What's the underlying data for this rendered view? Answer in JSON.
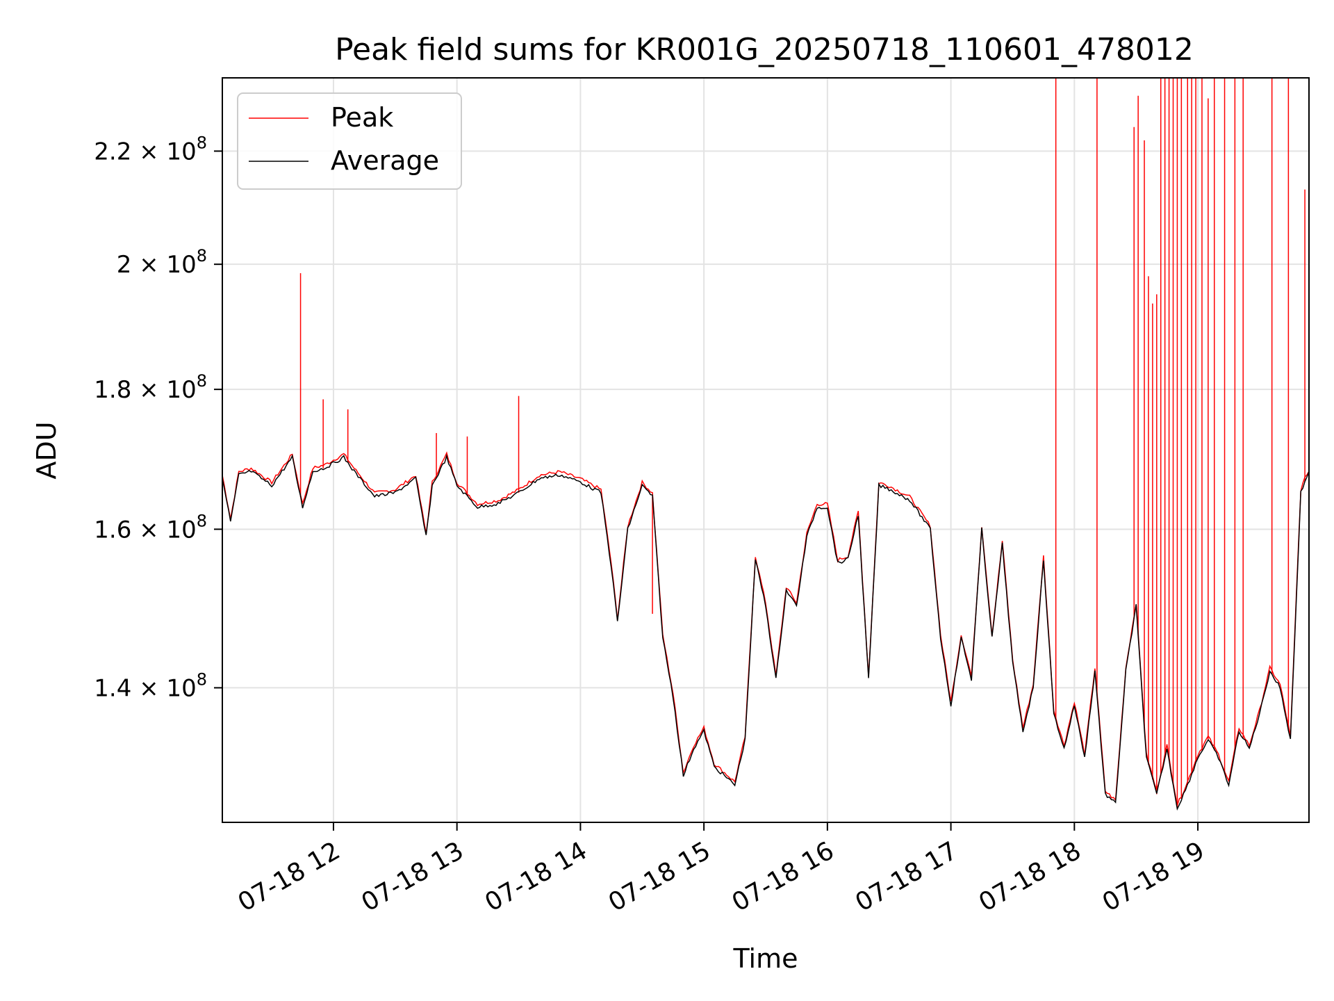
{
  "chart_data": {
    "type": "line",
    "title": "Peak field sums for KR001G_20250718_110601_478012",
    "xlabel": "Time",
    "ylabel": "ADU",
    "y_scale": "log",
    "grid": true,
    "legend_position": "top-left",
    "xlim": [
      "2025-07-18T11:06",
      "2025-07-18T19:54"
    ],
    "ylim": [
      125000000,
      234000000
    ],
    "x_ticks": [
      "2025-07-18T12:00",
      "2025-07-18T13:00",
      "2025-07-18T14:00",
      "2025-07-18T15:00",
      "2025-07-18T16:00",
      "2025-07-18T17:00",
      "2025-07-18T18:00",
      "2025-07-18T19:00"
    ],
    "x_tick_labels": [
      "07-18 12",
      "07-18 13",
      "07-18 14",
      "07-18 15",
      "07-18 16",
      "07-18 17",
      "07-18 18",
      "07-18 19"
    ],
    "y_ticks": [
      140000000,
      160000000,
      180000000,
      200000000,
      220000000
    ],
    "y_tick_labels": [
      {
        "mantissa": "1.4",
        "exponent": "8"
      },
      {
        "mantissa": "1.6",
        "exponent": "8"
      },
      {
        "mantissa": "1.8",
        "exponent": "8"
      },
      {
        "mantissa": "2",
        "exponent": "8"
      },
      {
        "mantissa": "2.2",
        "exponent": "8"
      }
    ],
    "series": [
      {
        "name": "Peak",
        "color": "#ff0000"
      },
      {
        "name": "Average",
        "color": "#000000"
      }
    ],
    "average_series": {
      "x": [
        "2025-07-18T11:06",
        "2025-07-18T11:10",
        "2025-07-18T11:14",
        "2025-07-18T11:20",
        "2025-07-18T11:30",
        "2025-07-18T11:40",
        "2025-07-18T11:45",
        "2025-07-18T11:50",
        "2025-07-18T11:56",
        "2025-07-18T12:05",
        "2025-07-18T12:10",
        "2025-07-18T12:20",
        "2025-07-18T12:30",
        "2025-07-18T12:40",
        "2025-07-18T12:45",
        "2025-07-18T12:48",
        "2025-07-18T12:55",
        "2025-07-18T13:00",
        "2025-07-18T13:10",
        "2025-07-18T13:20",
        "2025-07-18T13:30",
        "2025-07-18T13:40",
        "2025-07-18T13:50",
        "2025-07-18T14:00",
        "2025-07-18T14:10",
        "2025-07-18T14:15",
        "2025-07-18T14:18",
        "2025-07-18T14:23",
        "2025-07-18T14:30",
        "2025-07-18T14:35",
        "2025-07-18T14:40",
        "2025-07-18T14:45",
        "2025-07-18T14:50",
        "2025-07-18T14:55",
        "2025-07-18T15:00",
        "2025-07-18T15:05",
        "2025-07-18T15:10",
        "2025-07-18T15:15",
        "2025-07-18T15:20",
        "2025-07-18T15:25",
        "2025-07-18T15:30",
        "2025-07-18T15:35",
        "2025-07-18T15:40",
        "2025-07-18T15:45",
        "2025-07-18T15:50",
        "2025-07-18T15:55",
        "2025-07-18T16:00",
        "2025-07-18T16:05",
        "2025-07-18T16:10",
        "2025-07-18T16:15",
        "2025-07-18T16:20",
        "2025-07-18T16:25",
        "2025-07-18T16:30",
        "2025-07-18T16:40",
        "2025-07-18T16:50",
        "2025-07-18T16:55",
        "2025-07-18T17:00",
        "2025-07-18T17:05",
        "2025-07-18T17:10",
        "2025-07-18T17:15",
        "2025-07-18T17:20",
        "2025-07-18T17:25",
        "2025-07-18T17:30",
        "2025-07-18T17:35",
        "2025-07-18T17:40",
        "2025-07-18T17:45",
        "2025-07-18T17:50",
        "2025-07-18T17:55",
        "2025-07-18T18:00",
        "2025-07-18T18:05",
        "2025-07-18T18:10",
        "2025-07-18T18:15",
        "2025-07-18T18:20",
        "2025-07-18T18:25",
        "2025-07-18T18:30",
        "2025-07-18T18:35",
        "2025-07-18T18:40",
        "2025-07-18T18:45",
        "2025-07-18T18:50",
        "2025-07-18T18:55",
        "2025-07-18T19:00",
        "2025-07-18T19:05",
        "2025-07-18T19:10",
        "2025-07-18T19:15",
        "2025-07-18T19:20",
        "2025-07-18T19:25",
        "2025-07-18T19:30",
        "2025-07-18T19:35",
        "2025-07-18T19:40",
        "2025-07-18T19:45",
        "2025-07-18T19:50",
        "2025-07-18T19:54"
      ],
      "y": [
        167000000,
        161000000,
        167500000,
        168000000,
        166000000,
        170000000,
        163000000,
        168000000,
        168500000,
        170000000,
        168000000,
        164500000,
        165000000,
        167000000,
        159000000,
        166000000,
        170000000,
        166000000,
        163000000,
        163500000,
        165000000,
        167000000,
        167500000,
        166500000,
        165000000,
        155000000,
        148000000,
        160000000,
        166000000,
        164500000,
        146000000,
        139000000,
        130000000,
        133000000,
        135000000,
        131000000,
        130000000,
        129000000,
        134000000,
        156000000,
        150000000,
        141000000,
        152000000,
        150000000,
        159000000,
        163000000,
        163000000,
        155500000,
        156000000,
        162000000,
        141000000,
        166000000,
        165500000,
        164000000,
        160000000,
        146000000,
        138000000,
        146000000,
        141000000,
        160000000,
        146000000,
        158000000,
        143000000,
        135000000,
        140000000,
        156000000,
        137000000,
        133000000,
        138000000,
        132000000,
        142000000,
        128000000,
        127000000,
        142000000,
        150000000,
        132000000,
        128000000,
        133000000,
        126500000,
        129000000,
        132000000,
        134000000,
        132000000,
        129000000,
        135000000,
        133000000,
        137000000,
        142000000,
        140000000,
        134000000,
        165000000,
        168000000
      ]
    },
    "peak_spikes": [
      {
        "x": "2025-07-18T11:44",
        "y": 198500000
      },
      {
        "x": "2025-07-18T11:55",
        "y": 178500000
      },
      {
        "x": "2025-07-18T12:07",
        "y": 177000000
      },
      {
        "x": "2025-07-18T12:50",
        "y": 173500000
      },
      {
        "x": "2025-07-18T13:05",
        "y": 173000000
      },
      {
        "x": "2025-07-18T13:30",
        "y": 179000000
      },
      {
        "x": "2025-07-18T14:35",
        "y": 149000000
      },
      {
        "x": "2025-07-18T17:51",
        "y": 234000000
      },
      {
        "x": "2025-07-18T18:11",
        "y": 234000000
      },
      {
        "x": "2025-07-18T18:29",
        "y": 224500000
      },
      {
        "x": "2025-07-18T18:31",
        "y": 230500000
      },
      {
        "x": "2025-07-18T18:34",
        "y": 222000000
      },
      {
        "x": "2025-07-18T18:36",
        "y": 198000000
      },
      {
        "x": "2025-07-18T18:38",
        "y": 193500000
      },
      {
        "x": "2025-07-18T18:40",
        "y": 195000000
      },
      {
        "x": "2025-07-18T18:42",
        "y": 234000000
      },
      {
        "x": "2025-07-18T18:44",
        "y": 234000000
      },
      {
        "x": "2025-07-18T18:46",
        "y": 234000000
      },
      {
        "x": "2025-07-18T18:48",
        "y": 234000000
      },
      {
        "x": "2025-07-18T18:50",
        "y": 234000000
      },
      {
        "x": "2025-07-18T18:52",
        "y": 234000000
      },
      {
        "x": "2025-07-18T18:55",
        "y": 234000000
      },
      {
        "x": "2025-07-18T18:57",
        "y": 234000000
      },
      {
        "x": "2025-07-18T18:59",
        "y": 234000000
      },
      {
        "x": "2025-07-18T19:02",
        "y": 234000000
      },
      {
        "x": "2025-07-18T19:05",
        "y": 230000000
      },
      {
        "x": "2025-07-18T19:08",
        "y": 234000000
      },
      {
        "x": "2025-07-18T19:13",
        "y": 234000000
      },
      {
        "x": "2025-07-18T19:18",
        "y": 234000000
      },
      {
        "x": "2025-07-18T19:22",
        "y": 234000000
      },
      {
        "x": "2025-07-18T19:36",
        "y": 234000000
      },
      {
        "x": "2025-07-18T19:44",
        "y": 234000000
      },
      {
        "x": "2025-07-18T19:52",
        "y": 213000000
      }
    ]
  }
}
